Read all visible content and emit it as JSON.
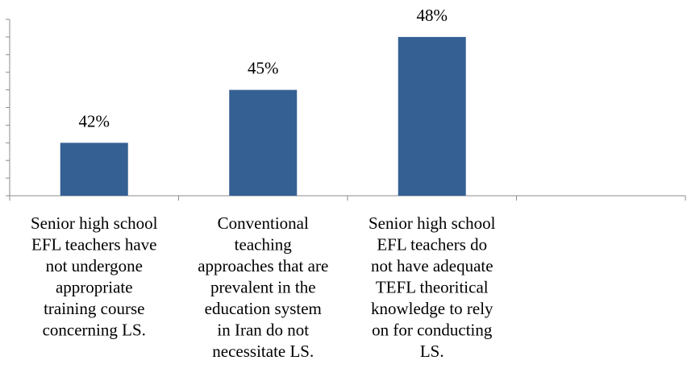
{
  "chart_data": {
    "type": "bar",
    "categories": [
      [
        "Senior high school",
        "EFL teachers have",
        "not undergone",
        "appropriate",
        "training course",
        "concerning LS."
      ],
      [
        "Conventional",
        "teaching",
        "approaches that are",
        "prevalent in the",
        "education system",
        "in Iran do not",
        "necessitate LS."
      ],
      [
        "Senior high school",
        "EFL teachers do",
        "not have adequate",
        "TEFL theoritical",
        "knowledge to rely",
        "on for conducting",
        "LS."
      ]
    ],
    "values": [
      42,
      45,
      48
    ],
    "data_labels": [
      "42%",
      "45%",
      "48%"
    ],
    "ylim": [
      39,
      49
    ],
    "y_minor_ticks": 10,
    "empty_slots": 1,
    "bar_color": "#356093",
    "axis_color": "#8c8c8c"
  }
}
